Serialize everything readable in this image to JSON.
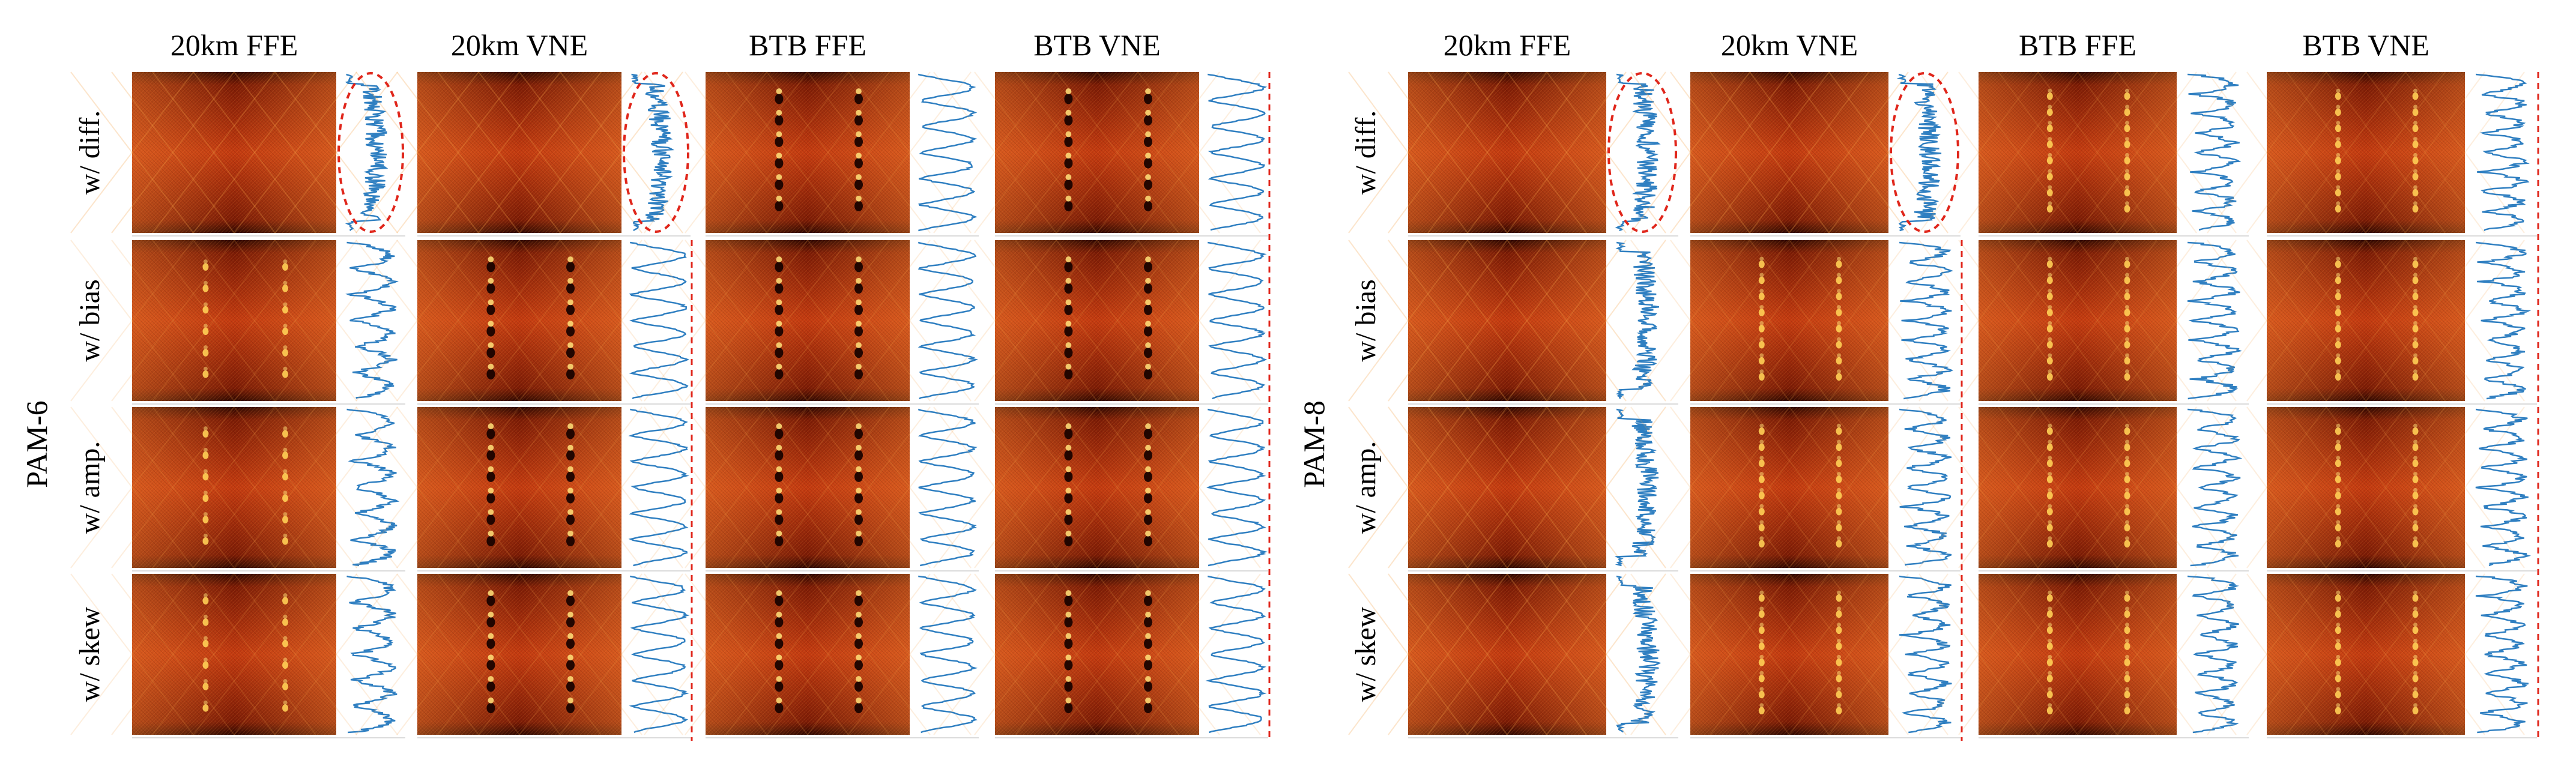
{
  "panels": [
    {
      "id": "pam6",
      "format_label": "PAM-6",
      "columns": [
        "20km FFE",
        "20km VNE",
        "BTB FFE",
        "BTB VNE"
      ],
      "rows": [
        "w/ diff.",
        "w/ bias",
        "w/ amp.",
        "w/ skew"
      ],
      "levels": 6
    },
    {
      "id": "pam8",
      "format_label": "PAM-8",
      "columns": [
        "20km FFE",
        "20km VNE",
        "BTB FFE",
        "BTB VNE"
      ],
      "rows": [
        "w/ diff.",
        "w/ bias",
        "w/ amp.",
        "w/ skew"
      ],
      "levels": 8
    }
  ],
  "colors": {
    "eye_dark": "#2a0600",
    "eye_mid": "#b3300d",
    "eye_bright": "#ffd75a",
    "histogram": "#2f7fc1",
    "highlight_dash": "#e0261b"
  },
  "cells": {
    "pam6": [
      [
        "closed",
        "closed",
        "open",
        "open"
      ],
      [
        "partial",
        "open",
        "open",
        "open"
      ],
      [
        "partial",
        "open",
        "open",
        "open"
      ],
      [
        "partial",
        "open",
        "open",
        "open"
      ]
    ],
    "pam8": [
      [
        "closed",
        "closed",
        "partial",
        "partial"
      ],
      [
        "closed",
        "partial",
        "partial",
        "partial"
      ],
      [
        "closed",
        "partial",
        "partial",
        "partial"
      ],
      [
        "closed",
        "partial",
        "partial",
        "partial"
      ]
    ]
  },
  "highlighted_cells": {
    "pam6": [
      [
        0,
        0
      ],
      [
        0,
        1
      ]
    ],
    "pam8": [
      [
        0,
        0
      ],
      [
        0,
        1
      ]
    ]
  },
  "dashed_separator_after_column": {
    "pam6": [
      1,
      3
    ],
    "pam8": [
      1,
      3
    ]
  }
}
